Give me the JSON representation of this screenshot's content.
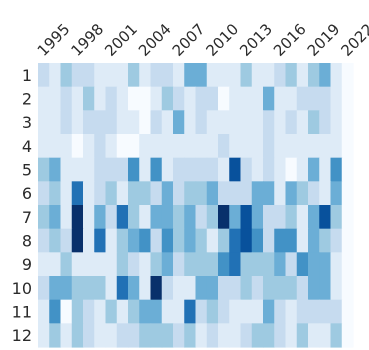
{
  "chart_data": {
    "type": "heatmap",
    "title": "",
    "xlabel": "",
    "ylabel": "",
    "colorscale": [
      "#f7fbff",
      "#deebf7",
      "#c6dbef",
      "#9ecae1",
      "#6baed6",
      "#4292c6",
      "#2171b5",
      "#08519c",
      "#08306b"
    ],
    "x": [
      1995,
      1996,
      1997,
      1998,
      1999,
      2000,
      2001,
      2002,
      2003,
      2004,
      2005,
      2006,
      2007,
      2008,
      2009,
      2010,
      2011,
      2012,
      2013,
      2014,
      2015,
      2016,
      2017,
      2018,
      2019,
      2020,
      2021,
      2022
    ],
    "xtick_labels": [
      "1995",
      "1998",
      "2001",
      "2004",
      "2007",
      "2010",
      "2013",
      "2016",
      "2019",
      "2022"
    ],
    "y": [
      "1",
      "2",
      "3",
      "4",
      "5",
      "6",
      "7",
      "8",
      "9",
      "10",
      "11",
      "12"
    ],
    "zrange": [
      0,
      8
    ],
    "z": [
      [
        2,
        1,
        3,
        2,
        2,
        1,
        1,
        1,
        3,
        1,
        2,
        2,
        1,
        4,
        4,
        1,
        1,
        1,
        3,
        1,
        1,
        2,
        3,
        1,
        3,
        4,
        1,
        0
      ],
      [
        1,
        1,
        2,
        1,
        3,
        1,
        2,
        1,
        0,
        0,
        1,
        3,
        2,
        1,
        2,
        2,
        0,
        1,
        1,
        1,
        4,
        1,
        1,
        2,
        2,
        2,
        1,
        0
      ],
      [
        1,
        1,
        2,
        1,
        2,
        2,
        2,
        1,
        1,
        0,
        2,
        1,
        4,
        1,
        2,
        1,
        1,
        1,
        1,
        1,
        2,
        1,
        2,
        1,
        3,
        2,
        1,
        0
      ],
      [
        1,
        1,
        1,
        0,
        1,
        2,
        1,
        0,
        0,
        1,
        1,
        1,
        1,
        1,
        1,
        1,
        2,
        1,
        1,
        1,
        2,
        1,
        1,
        1,
        1,
        1,
        1,
        0
      ],
      [
        3,
        4,
        1,
        1,
        1,
        2,
        2,
        2,
        5,
        1,
        5,
        1,
        2,
        2,
        2,
        2,
        1,
        7,
        2,
        1,
        2,
        1,
        0,
        1,
        4,
        1,
        5,
        0
      ],
      [
        2,
        3,
        1,
        6,
        1,
        2,
        3,
        1,
        3,
        3,
        2,
        4,
        2,
        3,
        3,
        4,
        2,
        2,
        2,
        4,
        4,
        1,
        4,
        3,
        2,
        1,
        4,
        0
      ],
      [
        3,
        4,
        1,
        8,
        1,
        4,
        2,
        6,
        3,
        1,
        4,
        4,
        3,
        4,
        2,
        3,
        8,
        4,
        7,
        4,
        2,
        2,
        3,
        1,
        4,
        7,
        3,
        0
      ],
      [
        2,
        3,
        2,
        8,
        1,
        6,
        1,
        3,
        4,
        5,
        2,
        5,
        3,
        4,
        3,
        1,
        3,
        6,
        7,
        5,
        2,
        5,
        5,
        1,
        4,
        3,
        2,
        0
      ],
      [
        1,
        1,
        3,
        1,
        1,
        1,
        1,
        3,
        2,
        1,
        3,
        4,
        2,
        3,
        3,
        3,
        5,
        6,
        3,
        3,
        3,
        4,
        2,
        5,
        4,
        4,
        1,
        0
      ],
      [
        2,
        4,
        4,
        3,
        3,
        3,
        1,
        6,
        4,
        1,
        8,
        2,
        1,
        1,
        4,
        4,
        2,
        2,
        3,
        2,
        3,
        3,
        3,
        2,
        4,
        4,
        1,
        0
      ],
      [
        1,
        5,
        0,
        3,
        2,
        1,
        3,
        1,
        3,
        4,
        4,
        1,
        1,
        6,
        2,
        3,
        2,
        1,
        1,
        1,
        4,
        2,
        1,
        2,
        2,
        2,
        2,
        0
      ],
      [
        1,
        3,
        1,
        3,
        2,
        1,
        1,
        2,
        2,
        3,
        3,
        3,
        2,
        3,
        1,
        2,
        1,
        1,
        2,
        3,
        3,
        2,
        1,
        3,
        1,
        1,
        3,
        0
      ]
    ]
  }
}
